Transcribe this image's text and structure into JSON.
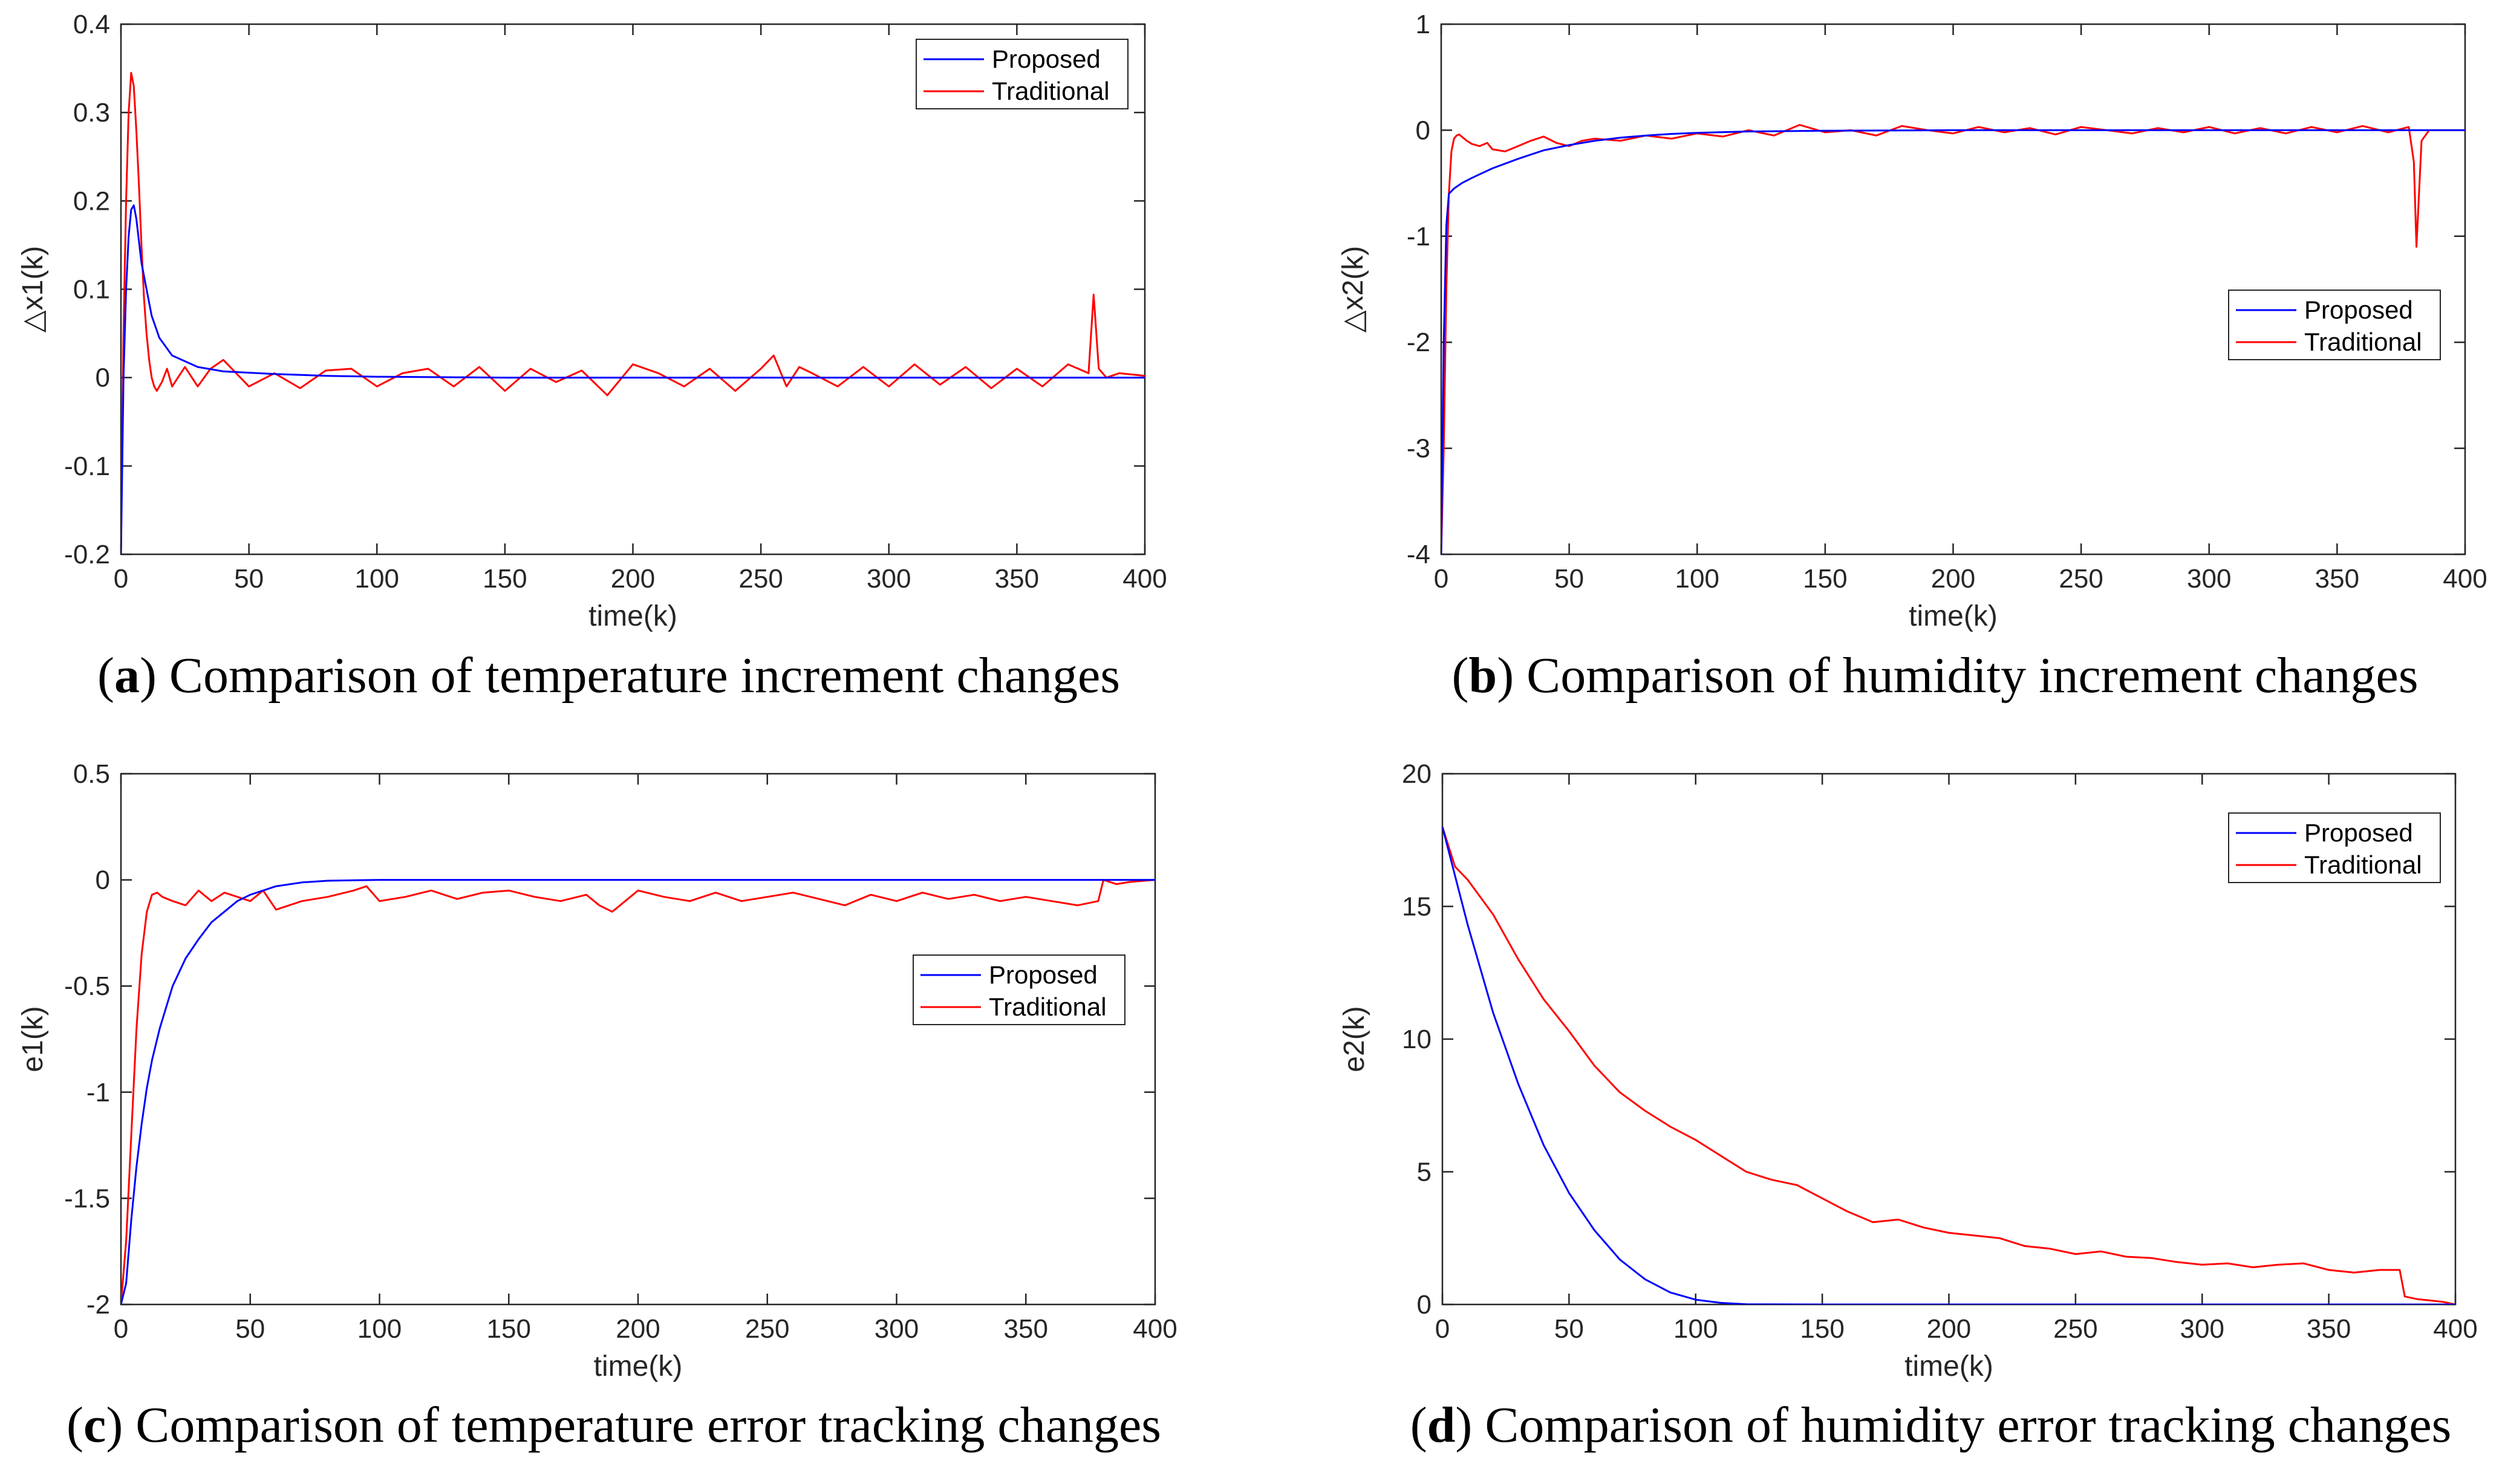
{
  "colors": {
    "proposed": "#0000ff",
    "traditional": "#ff0000",
    "axis": "#262626"
  },
  "chart_data": [
    {
      "id": "a",
      "type": "line",
      "caption": {
        "letter": "a",
        "text": "Comparison of temperature increment changes"
      },
      "xlabel": "time(k)",
      "ylabel": "△x1(k)",
      "xlim": [
        0,
        400
      ],
      "ylim": [
        -0.2,
        0.4
      ],
      "xticks": [
        0,
        50,
        100,
        150,
        200,
        250,
        300,
        350,
        400
      ],
      "xtick_labels": [
        "0",
        "50",
        "100",
        "150",
        "200",
        "250",
        "300",
        "350",
        "400"
      ],
      "yticks": [
        -0.2,
        -0.1,
        0,
        0.1,
        0.2,
        0.3,
        0.4
      ],
      "ytick_labels": [
        "-0.2",
        "-0.1",
        "0",
        "0.1",
        "0.2",
        "0.3",
        "0.4"
      ],
      "grid": false,
      "legend": {
        "position": "top-right"
      },
      "series": [
        {
          "name": "Proposed",
          "color": "#0000ff",
          "x": [
            0,
            1,
            2,
            3,
            4,
            5,
            6,
            8,
            10,
            12,
            15,
            20,
            30,
            40,
            60,
            80,
            100,
            150,
            200,
            250,
            300,
            350,
            400
          ],
          "y": [
            -0.2,
            0.0,
            0.1,
            0.16,
            0.19,
            0.195,
            0.18,
            0.13,
            0.1,
            0.07,
            0.045,
            0.025,
            0.012,
            0.007,
            0.004,
            0.002,
            0.001,
            0.0,
            0.0,
            0.0,
            0.0,
            0.0,
            0.0
          ]
        },
        {
          "name": "Traditional",
          "color": "#ff0000",
          "x": [
            0,
            1,
            2,
            3,
            4,
            5,
            6,
            7,
            8,
            9,
            10,
            11,
            12,
            13,
            14,
            16,
            18,
            20,
            25,
            30,
            35,
            40,
            50,
            60,
            70,
            80,
            90,
            100,
            110,
            120,
            130,
            140,
            150,
            160,
            170,
            180,
            190,
            200,
            210,
            220,
            230,
            240,
            250,
            255,
            260,
            265,
            270,
            280,
            290,
            300,
            310,
            320,
            330,
            340,
            350,
            360,
            370,
            378,
            380,
            382,
            385,
            390,
            400
          ],
          "y": [
            -0.2,
            0.05,
            0.2,
            0.3,
            0.345,
            0.33,
            0.28,
            0.22,
            0.15,
            0.09,
            0.05,
            0.02,
            0.0,
            -0.01,
            -0.015,
            -0.005,
            0.01,
            -0.01,
            0.012,
            -0.01,
            0.01,
            0.02,
            -0.01,
            0.005,
            -0.012,
            0.008,
            0.01,
            -0.01,
            0.005,
            0.01,
            -0.01,
            0.012,
            -0.015,
            0.01,
            -0.005,
            0.008,
            -0.02,
            0.015,
            0.005,
            -0.01,
            0.01,
            -0.015,
            0.01,
            0.025,
            -0.01,
            0.012,
            0.005,
            -0.01,
            0.012,
            -0.01,
            0.015,
            -0.008,
            0.012,
            -0.012,
            0.01,
            -0.01,
            0.015,
            0.005,
            0.094,
            0.01,
            0.0,
            0.005,
            0.002
          ]
        }
      ]
    },
    {
      "id": "b",
      "type": "line",
      "caption": {
        "letter": "b",
        "text": "Comparison of humidity increment changes"
      },
      "xlabel": "time(k)",
      "ylabel": "△x2(k)",
      "xlim": [
        0,
        400
      ],
      "ylim": [
        -4,
        1
      ],
      "xticks": [
        0,
        50,
        100,
        150,
        200,
        250,
        300,
        350,
        400
      ],
      "xtick_labels": [
        "0",
        "50",
        "100",
        "150",
        "200",
        "250",
        "300",
        "350",
        "400"
      ],
      "yticks": [
        -4,
        -3,
        -2,
        -1,
        0,
        1
      ],
      "ytick_labels": [
        "-4",
        "-3",
        "-2",
        "-1",
        "0",
        "1"
      ],
      "grid": false,
      "legend": {
        "position": "center-right"
      },
      "series": [
        {
          "name": "Proposed",
          "color": "#0000ff",
          "x": [
            0,
            1,
            2,
            3,
            5,
            8,
            12,
            20,
            30,
            40,
            50,
            60,
            70,
            80,
            90,
            100,
            120,
            150,
            200,
            250,
            300,
            350,
            400
          ],
          "y": [
            -4.0,
            -2.0,
            -0.9,
            -0.6,
            -0.55,
            -0.5,
            -0.45,
            -0.36,
            -0.27,
            -0.19,
            -0.14,
            -0.1,
            -0.07,
            -0.05,
            -0.035,
            -0.025,
            -0.012,
            -0.005,
            0.0,
            0.0,
            0.0,
            0.0,
            0.0
          ]
        },
        {
          "name": "Traditional",
          "color": "#ff0000",
          "x": [
            0,
            1,
            2,
            3,
            4,
            5,
            6,
            7,
            8,
            10,
            12,
            15,
            18,
            20,
            25,
            30,
            35,
            40,
            45,
            50,
            55,
            60,
            70,
            80,
            90,
            100,
            110,
            120,
            130,
            140,
            150,
            160,
            170,
            180,
            190,
            200,
            210,
            220,
            230,
            240,
            250,
            260,
            270,
            280,
            290,
            300,
            310,
            320,
            330,
            340,
            350,
            360,
            370,
            378,
            380,
            381,
            383,
            386,
            390,
            400
          ],
          "y": [
            -4.0,
            -3.0,
            -1.5,
            -0.6,
            -0.2,
            -0.08,
            -0.05,
            -0.04,
            -0.06,
            -0.1,
            -0.13,
            -0.15,
            -0.12,
            -0.18,
            -0.2,
            -0.15,
            -0.1,
            -0.06,
            -0.12,
            -0.15,
            -0.1,
            -0.08,
            -0.1,
            -0.05,
            -0.08,
            -0.03,
            -0.06,
            0.0,
            -0.05,
            0.05,
            -0.02,
            0.0,
            -0.05,
            0.04,
            0.0,
            -0.03,
            0.03,
            -0.02,
            0.02,
            -0.04,
            0.03,
            0.0,
            -0.03,
            0.02,
            -0.02,
            0.03,
            -0.03,
            0.02,
            -0.03,
            0.03,
            -0.02,
            0.04,
            -0.02,
            0.03,
            -0.3,
            -1.1,
            -0.1,
            0.0,
            0.0,
            0.0
          ]
        }
      ]
    },
    {
      "id": "c",
      "type": "line",
      "caption": {
        "letter": "c",
        "text": "Comparison of temperature error tracking changes"
      },
      "xlabel": "time(k)",
      "ylabel": "e1(k)",
      "xlim": [
        0,
        400
      ],
      "ylim": [
        -2,
        0.5
      ],
      "xticks": [
        0,
        50,
        100,
        150,
        200,
        250,
        300,
        350,
        400
      ],
      "xtick_labels": [
        "0",
        "50",
        "100",
        "150",
        "200",
        "250",
        "300",
        "350",
        "400"
      ],
      "yticks": [
        -2,
        -1.5,
        -1,
        -0.5,
        0,
        0.5
      ],
      "ytick_labels": [
        "-2",
        "-1.5",
        "-1",
        "-0.5",
        "0",
        "0.5"
      ],
      "grid": false,
      "legend": {
        "position": "center-right"
      },
      "series": [
        {
          "name": "Proposed",
          "color": "#0000ff",
          "x": [
            0,
            2,
            4,
            6,
            8,
            10,
            12,
            15,
            18,
            20,
            25,
            30,
            35,
            40,
            45,
            50,
            55,
            60,
            70,
            80,
            90,
            100,
            150,
            200,
            250,
            300,
            350,
            400
          ],
          "y": [
            -2.0,
            -1.9,
            -1.6,
            -1.35,
            -1.15,
            -0.98,
            -0.85,
            -0.7,
            -0.58,
            -0.5,
            -0.37,
            -0.28,
            -0.2,
            -0.15,
            -0.1,
            -0.07,
            -0.05,
            -0.03,
            -0.012,
            -0.004,
            -0.002,
            0.0,
            0.0,
            0.0,
            0.0,
            0.0,
            0.0,
            0.0
          ]
        },
        {
          "name": "Traditional",
          "color": "#ff0000",
          "x": [
            0,
            2,
            4,
            6,
            8,
            10,
            12,
            14,
            16,
            20,
            25,
            30,
            35,
            40,
            45,
            50,
            55,
            60,
            70,
            80,
            90,
            95,
            100,
            110,
            120,
            130,
            140,
            150,
            160,
            170,
            180,
            185,
            190,
            200,
            210,
            220,
            230,
            240,
            250,
            260,
            270,
            280,
            290,
            300,
            310,
            320,
            330,
            340,
            350,
            360,
            370,
            378,
            380,
            385,
            390,
            400
          ],
          "y": [
            -2.0,
            -1.7,
            -1.2,
            -0.7,
            -0.35,
            -0.15,
            -0.07,
            -0.06,
            -0.08,
            -0.1,
            -0.12,
            -0.05,
            -0.1,
            -0.06,
            -0.08,
            -0.1,
            -0.05,
            -0.14,
            -0.1,
            -0.08,
            -0.05,
            -0.03,
            -0.1,
            -0.08,
            -0.05,
            -0.09,
            -0.06,
            -0.05,
            -0.08,
            -0.1,
            -0.07,
            -0.12,
            -0.15,
            -0.05,
            -0.08,
            -0.1,
            -0.06,
            -0.1,
            -0.08,
            -0.06,
            -0.09,
            -0.12,
            -0.07,
            -0.1,
            -0.06,
            -0.09,
            -0.07,
            -0.1,
            -0.08,
            -0.1,
            -0.12,
            -0.1,
            0.0,
            -0.02,
            -0.01,
            0.0
          ]
        }
      ]
    },
    {
      "id": "d",
      "type": "line",
      "caption": {
        "letter": "d",
        "text": "Comparison of humidity error tracking changes"
      },
      "xlabel": "time(k)",
      "ylabel": "e2(k)",
      "xlim": [
        0,
        400
      ],
      "ylim": [
        0,
        20
      ],
      "xticks": [
        0,
        50,
        100,
        150,
        200,
        250,
        300,
        350,
        400
      ],
      "xtick_labels": [
        "0",
        "50",
        "100",
        "150",
        "200",
        "250",
        "300",
        "350",
        "400"
      ],
      "yticks": [
        0,
        5,
        10,
        15,
        20
      ],
      "ytick_labels": [
        "0",
        "5",
        "10",
        "15",
        "20"
      ],
      "grid": false,
      "legend": {
        "position": "top-right"
      },
      "series": [
        {
          "name": "Proposed",
          "color": "#0000ff",
          "x": [
            0,
            10,
            20,
            30,
            40,
            50,
            60,
            70,
            80,
            90,
            100,
            110,
            120,
            150,
            200,
            250,
            300,
            350,
            400
          ],
          "y": [
            18.0,
            14.3,
            11.0,
            8.3,
            6.0,
            4.2,
            2.8,
            1.7,
            0.95,
            0.45,
            0.18,
            0.06,
            0.01,
            0.0,
            0.0,
            0.0,
            0.0,
            0.0,
            0.0
          ]
        },
        {
          "name": "Traditional",
          "color": "#ff0000",
          "x": [
            0,
            5,
            10,
            20,
            30,
            40,
            50,
            60,
            70,
            80,
            90,
            100,
            110,
            120,
            130,
            140,
            150,
            160,
            170,
            180,
            190,
            200,
            210,
            220,
            230,
            240,
            250,
            260,
            270,
            280,
            290,
            300,
            310,
            320,
            330,
            340,
            350,
            360,
            370,
            378,
            380,
            385,
            390,
            395,
            400
          ],
          "y": [
            18.0,
            16.5,
            16.0,
            14.7,
            13.0,
            11.5,
            10.3,
            9.0,
            8.0,
            7.3,
            6.7,
            6.2,
            5.6,
            5.0,
            4.7,
            4.5,
            4.0,
            3.5,
            3.1,
            3.2,
            2.9,
            2.7,
            2.6,
            2.5,
            2.2,
            2.1,
            1.9,
            2.0,
            1.8,
            1.75,
            1.6,
            1.5,
            1.55,
            1.4,
            1.5,
            1.55,
            1.3,
            1.2,
            1.3,
            1.3,
            0.3,
            0.2,
            0.15,
            0.1,
            0.0
          ]
        }
      ]
    }
  ]
}
